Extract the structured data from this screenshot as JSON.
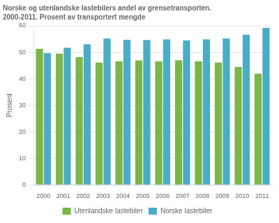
{
  "chart_data": {
    "type": "bar",
    "title": "Norske og utenlandske lastebilers andel av grensetransporten.",
    "subtitle": "2000-2011. Prosent av transportert mengde",
    "ylabel": "Prosent",
    "categories": [
      2000,
      2001,
      2002,
      2003,
      2004,
      2005,
      2006,
      2007,
      2008,
      2009,
      2010,
      2011
    ],
    "series": [
      {
        "name": "Utenlandske lastebiler",
        "color": "#7ab648",
        "values": [
          51.3,
          49.5,
          48.2,
          46.1,
          46.6,
          46.9,
          46.6,
          47.0,
          46.6,
          46.1,
          44.5,
          41.9
        ]
      },
      {
        "name": "Norske lastebiler",
        "color": "#4bacc6",
        "values": [
          49.7,
          51.7,
          53.0,
          55.2,
          54.7,
          54.6,
          54.9,
          54.5,
          54.9,
          55.2,
          56.6,
          59.2
        ]
      }
    ],
    "ylim": [
      0,
      60
    ],
    "yticks": [
      0,
      10,
      20,
      30,
      40,
      50,
      60
    ],
    "grid": true,
    "legend": "bottom"
  }
}
